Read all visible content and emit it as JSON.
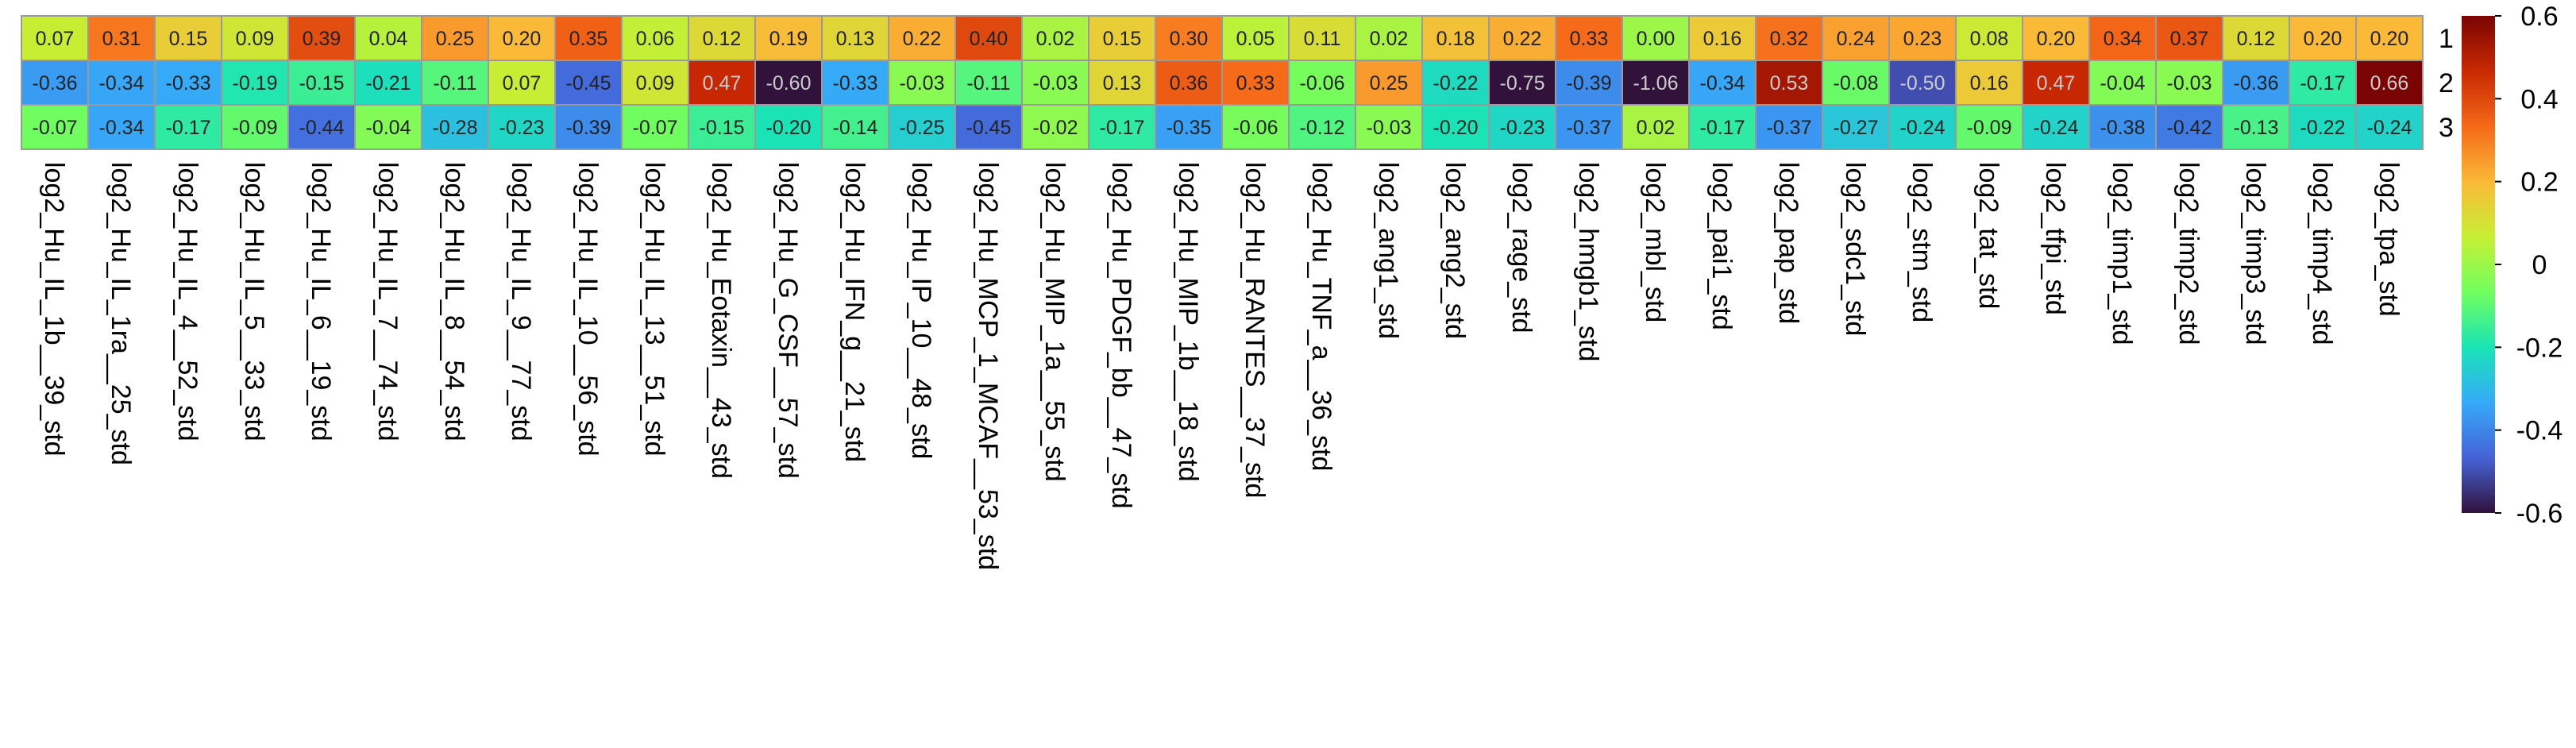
{
  "chart_data": {
    "type": "heatmap",
    "title": "",
    "xlabel": "",
    "ylabel": "",
    "rows": [
      "1",
      "2",
      "3"
    ],
    "columns": [
      "log2_Hu_IL_1b__39_std",
      "log2_Hu_IL_1ra__25_std",
      "log2_Hu_IL_4__52_std",
      "log2_Hu_IL_5__33_std",
      "log2_Hu_IL_6__19_std",
      "log2_Hu_IL_7__74_std",
      "log2_Hu_IL_8__54_std",
      "log2_Hu_IL_9__77_std",
      "log2_Hu_IL_10__56_std",
      "log2_Hu_IL_13__51_std",
      "log2_Hu_Eotaxin__43_std",
      "log2_Hu_G_CSF__57_std",
      "log2_Hu_IFN_g__21_std",
      "log2_Hu_IP_10__48_std",
      "log2_Hu_MCP_1_MCAF__53_std",
      "log2_Hu_MIP_1a__55_std",
      "log2_Hu_PDGF_bb__47_std",
      "log2_Hu_MIP_1b__18_std",
      "log2_Hu_RANTES__37_std",
      "log2_Hu_TNF_a__36_std",
      "log2_ang1_std",
      "log2_ang2_std",
      "log2_rage_std",
      "log2_hmgb1_std",
      "log2_mbl_std",
      "log2_pai1_std",
      "log2_pap_std",
      "log2_sdc1_std",
      "log2_stm_std",
      "log2_tat_std",
      "log2_tfpi_std",
      "log2_timp1_std",
      "log2_timp2_std",
      "log2_timp3_std",
      "log2_timp4_std",
      "log2_tpa_std"
    ],
    "values": [
      [
        0.07,
        0.31,
        0.15,
        0.09,
        0.39,
        0.04,
        0.25,
        0.2,
        0.35,
        0.06,
        0.12,
        0.19,
        0.13,
        0.22,
        0.4,
        0.02,
        0.15,
        0.3,
        0.05,
        0.11,
        0.02,
        0.18,
        0.22,
        0.33,
        0.0,
        0.16,
        0.32,
        0.24,
        0.23,
        0.08,
        0.2,
        0.34,
        0.37,
        0.12,
        0.2,
        0.2
      ],
      [
        -0.36,
        -0.34,
        -0.33,
        -0.19,
        -0.15,
        -0.21,
        -0.11,
        0.07,
        -0.45,
        0.09,
        0.47,
        -0.6,
        -0.33,
        -0.03,
        -0.11,
        -0.03,
        0.13,
        0.36,
        0.33,
        -0.06,
        0.25,
        -0.22,
        -0.75,
        -0.39,
        -1.06,
        -0.34,
        0.53,
        -0.08,
        -0.5,
        0.16,
        0.47,
        -0.04,
        -0.03,
        -0.36,
        -0.17,
        0.66
      ],
      [
        -0.07,
        -0.34,
        -0.17,
        -0.09,
        -0.44,
        -0.04,
        -0.28,
        -0.23,
        -0.39,
        -0.07,
        -0.15,
        -0.2,
        -0.14,
        -0.25,
        -0.45,
        -0.02,
        -0.17,
        -0.35,
        -0.06,
        -0.12,
        -0.03,
        -0.2,
        -0.23,
        -0.37,
        0.02,
        -0.17,
        -0.37,
        -0.27,
        -0.24,
        -0.09,
        -0.24,
        -0.38,
        -0.42,
        -0.13,
        -0.22,
        -0.24
      ]
    ],
    "display_values": [
      [
        "0.07",
        "0.31",
        "0.15",
        "0.09",
        "0.39",
        "0.04",
        "0.25",
        "0.20",
        "0.35",
        "0.06",
        "0.12",
        "0.19",
        "0.13",
        "0.22",
        "0.40",
        "0.02",
        "0.15",
        "0.30",
        "0.05",
        "0.11",
        "0.02",
        "0.18",
        "0.22",
        "0.33",
        "0.00",
        "0.16",
        "0.32",
        "0.24",
        "0.23",
        "0.08",
        "0.20",
        "0.34",
        "0.37",
        "0.12",
        "0.20",
        "0.20"
      ],
      [
        "-0.36",
        "-0.34",
        "-0.33",
        "-0.19",
        "-0.15",
        "-0.21",
        "-0.11",
        "0.07",
        "-0.45",
        "0.09",
        "0.47",
        "-0.60",
        "-0.33",
        "-0.03",
        "-0.11",
        "-0.03",
        "0.13",
        "0.36",
        "0.33",
        "-0.06",
        "0.25",
        "-0.22",
        "-0.75",
        "-0.39",
        "-1.06",
        "-0.34",
        "0.53",
        "-0.08",
        "-0.50",
        "0.16",
        "0.47",
        "-0.04",
        "-0.03",
        "-0.36",
        "-0.17",
        "0.66"
      ],
      [
        "-0.07",
        "-0.34",
        "-0.17",
        "-0.09",
        "-0.44",
        "-0.04",
        "-0.28",
        "-0.23",
        "-0.39",
        "-0.07",
        "-0.15",
        "-0.20",
        "-0.14",
        "-0.25",
        "-0.45",
        "-0.02",
        "-0.17",
        "-0.35",
        "-0.06",
        "-0.12",
        "-0.03",
        "-0.20",
        "-0.23",
        "-0.37",
        "0.02",
        "-0.17",
        "-0.37",
        "-0.27",
        "-0.24",
        "-0.09",
        "-0.24",
        "-0.38",
        "-0.42",
        "-0.13",
        "-0.22",
        "-0.24"
      ]
    ],
    "colorbar": {
      "range": [
        -0.6,
        0.6
      ],
      "ticks": [
        0.6,
        0.4,
        0.2,
        0,
        -0.2,
        -0.4,
        -0.6
      ],
      "tick_labels": [
        "0.6",
        "0.4",
        "0.2",
        "0",
        "-0.2",
        "-0.4",
        "-0.6"
      ],
      "palette": [
        "#30123b",
        "#4662d7",
        "#36aaf9",
        "#1ae4b6",
        "#72fe5e",
        "#c7ef34",
        "#fbb938",
        "#f56918",
        "#c92903",
        "#7a0403"
      ]
    },
    "grid": true,
    "legend": "right",
    "colors": {
      "cell_border": "#9a9a9a",
      "text_dark": "#222222",
      "text_light": "#cccccc"
    }
  }
}
